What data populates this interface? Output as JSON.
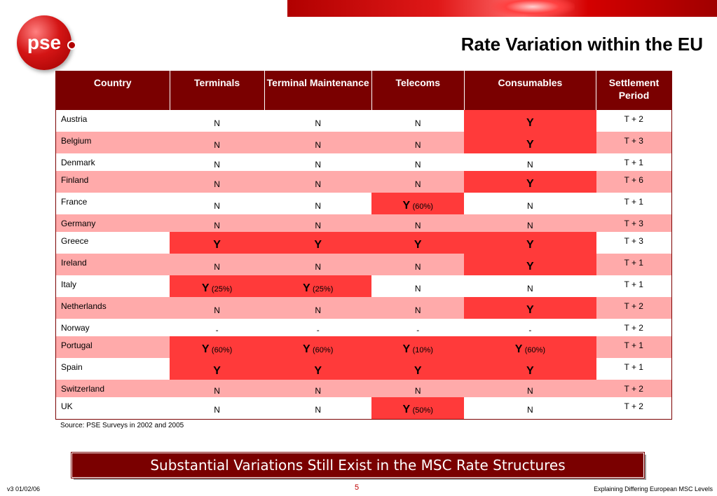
{
  "header": {
    "logo_text": "pse",
    "title": "Rate Variation within the EU"
  },
  "table": {
    "columns": [
      "Country",
      "Terminals",
      "Terminal Maintenance",
      "Telecoms",
      "Consumables",
      "Settlement Period"
    ],
    "rows": [
      {
        "country": "Austria",
        "terminals": "N",
        "maintenance": "N",
        "telecoms": "N",
        "consumables": "Y",
        "period": "T + 2"
      },
      {
        "country": "Belgium",
        "terminals": "N",
        "maintenance": "N",
        "telecoms": "N",
        "consumables": "Y",
        "period": "T + 3"
      },
      {
        "country": "Denmark",
        "terminals": "N",
        "maintenance": "N",
        "telecoms": "N",
        "consumables": "N",
        "period": "T + 1"
      },
      {
        "country": "Finland",
        "terminals": "N",
        "maintenance": "N",
        "telecoms": "N",
        "consumables": "Y",
        "period": "T + 6"
      },
      {
        "country": "France",
        "terminals": "N",
        "maintenance": "N",
        "telecoms": "Y",
        "telecoms_pct": "(60%)",
        "consumables": "N",
        "period": "T + 1"
      },
      {
        "country": "Germany",
        "terminals": "N",
        "maintenance": "N",
        "telecoms": "N",
        "consumables": "N",
        "period": "T + 3"
      },
      {
        "country": "Greece",
        "terminals": "Y",
        "maintenance": "Y",
        "telecoms": "Y",
        "consumables": "Y",
        "period": "T + 3"
      },
      {
        "country": "Ireland",
        "terminals": "N",
        "maintenance": "N",
        "telecoms": "N",
        "consumables": "Y",
        "period": "T + 1"
      },
      {
        "country": "Italy",
        "terminals": "Y",
        "terminals_pct": "(25%)",
        "maintenance": "Y",
        "maintenance_pct": "(25%)",
        "telecoms": "N",
        "consumables": "N",
        "period": "T + 1"
      },
      {
        "country": "Netherlands",
        "terminals": "N",
        "maintenance": "N",
        "telecoms": "N",
        "consumables": "Y",
        "period": "T + 2"
      },
      {
        "country": "Norway",
        "terminals": "-",
        "maintenance": "-",
        "telecoms": "-",
        "consumables": "-",
        "period": "T + 2"
      },
      {
        "country": "Portugal",
        "terminals": "Y",
        "terminals_pct": "(60%)",
        "maintenance": "Y",
        "maintenance_pct": "(60%)",
        "telecoms": "Y",
        "telecoms_pct": "(10%)",
        "consumables": "Y",
        "consumables_pct": "(60%)",
        "period": "T + 1"
      },
      {
        "country": "Spain",
        "terminals": "Y",
        "maintenance": "Y",
        "telecoms": "Y",
        "consumables": "Y",
        "period": "T + 1"
      },
      {
        "country": "Switzerland",
        "terminals": "N",
        "maintenance": "N",
        "telecoms": "N",
        "consumables": "N",
        "period": "T + 2"
      },
      {
        "country": "UK",
        "terminals": "N",
        "maintenance": "N",
        "telecoms": "Y",
        "telecoms_pct": "(50%)",
        "consumables": "N",
        "period": "T + 2"
      }
    ]
  },
  "source": "Source: PSE Surveys in 2002 and 2005",
  "callout": "Substantial Variations Still Exist in the MSC Rate Structures",
  "footer": {
    "version": "v3  01/02/06",
    "page": "5",
    "right": "Explaining Differing European MSC Levels"
  },
  "colors": {
    "header_bg": "#7a0000",
    "row_alt": "#ffaaaa",
    "highlight": "#ff3a3a"
  }
}
